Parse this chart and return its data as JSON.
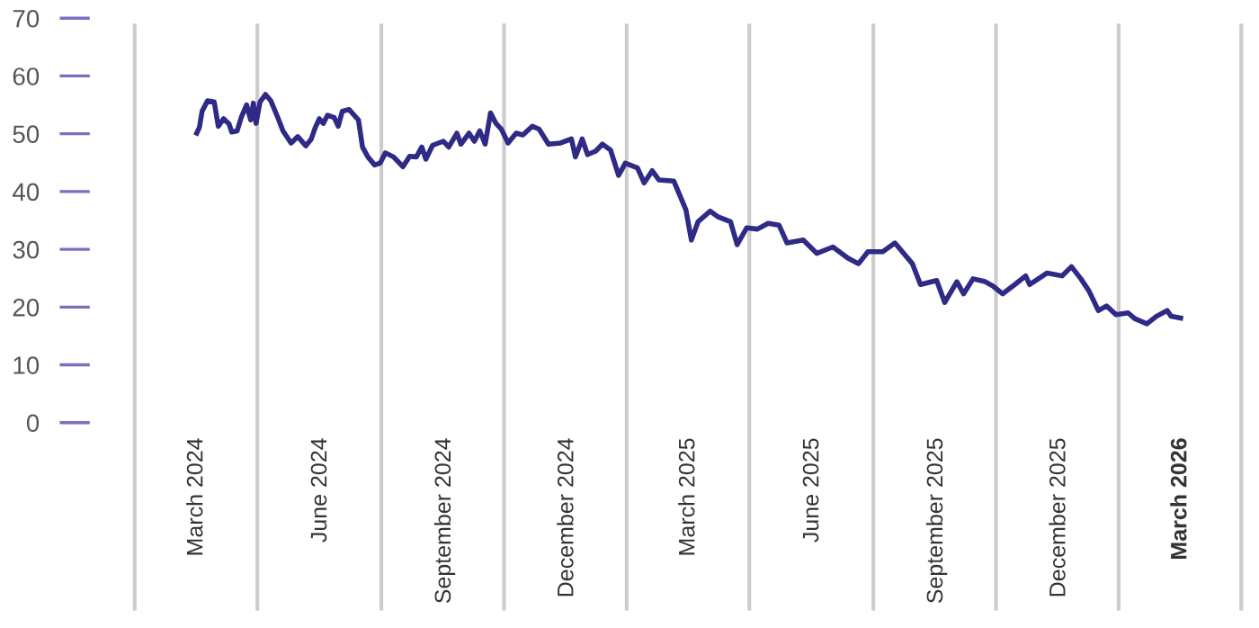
{
  "chart_data": {
    "type": "line",
    "x": [
      "2024-03-01",
      "2024-03-03",
      "2024-03-05",
      "2024-03-09",
      "2024-03-14",
      "2024-03-17",
      "2024-03-21",
      "2024-03-25",
      "2024-03-27",
      "2024-03-31",
      "2024-04-03",
      "2024-04-07",
      "2024-04-10",
      "2024-04-12",
      "2024-04-14",
      "2024-04-17",
      "2024-04-21",
      "2024-04-25",
      "2024-04-30",
      "2024-05-04",
      "2024-05-10",
      "2024-05-15",
      "2024-05-21",
      "2024-05-25",
      "2024-05-28",
      "2024-05-31",
      "2024-06-03",
      "2024-06-06",
      "2024-06-11",
      "2024-06-14",
      "2024-06-17",
      "2024-06-22",
      "2024-06-29",
      "2024-07-02",
      "2024-07-06",
      "2024-07-11",
      "2024-07-15",
      "2024-07-19",
      "2024-07-25",
      "2024-08-01",
      "2024-08-06",
      "2024-08-11",
      "2024-08-15",
      "2024-08-18",
      "2024-08-23",
      "2024-08-31",
      "2024-09-04",
      "2024-09-10",
      "2024-09-13",
      "2024-09-19",
      "2024-09-23",
      "2024-09-27",
      "2024-10-01",
      "2024-10-05",
      "2024-10-09",
      "2024-10-13",
      "2024-10-18",
      "2024-10-24",
      "2024-10-29",
      "2024-11-05",
      "2024-11-10",
      "2024-11-17",
      "2024-11-26",
      "2024-12-04",
      "2024-12-07",
      "2024-12-12",
      "2024-12-16",
      "2024-12-22",
      "2024-12-27",
      "2025-01-02",
      "2025-01-08",
      "2025-01-13",
      "2025-01-22",
      "2025-01-27",
      "2025-02-02",
      "2025-02-07",
      "2025-02-18",
      "2025-02-27",
      "2025-03-03",
      "2025-03-08",
      "2025-03-17",
      "2025-03-23",
      "2025-04-01",
      "2025-04-06",
      "2025-04-13",
      "2025-04-21",
      "2025-04-29",
      "2025-05-07",
      "2025-05-13",
      "2025-05-25",
      "2025-06-04",
      "2025-06-16",
      "2025-06-27",
      "2025-07-05",
      "2025-07-12",
      "2025-07-23",
      "2025-08-01",
      "2025-08-14",
      "2025-08-20",
      "2025-09-01",
      "2025-09-07",
      "2025-09-16",
      "2025-09-21",
      "2025-09-28",
      "2025-10-07",
      "2025-10-13",
      "2025-10-20",
      "2025-10-29",
      "2025-11-06",
      "2025-11-09",
      "2025-11-22",
      "2025-12-03",
      "2025-12-10",
      "2025-12-17",
      "2025-12-23",
      "2025-12-30",
      "2026-01-05",
      "2026-01-12",
      "2026-01-21",
      "2026-01-26",
      "2026-02-04",
      "2026-02-11",
      "2026-02-19",
      "2026-02-22",
      "2026-03-01"
    ],
    "series": [
      {
        "color": "#2e2a86",
        "values": [
          50.1,
          51.1,
          53.9,
          55.7,
          55.5,
          51.3,
          52.6,
          51.7,
          50.3,
          50.5,
          52.8,
          55,
          52.4,
          55.3,
          51.8,
          55.5,
          56.8,
          55.7,
          52.9,
          50.5,
          48.4,
          49.5,
          47.9,
          49.1,
          51.1,
          52.6,
          51.8,
          53.2,
          52.8,
          51.3,
          53.9,
          54.2,
          52.4,
          47.7,
          46,
          44.6,
          44.9,
          46.7,
          46,
          44.3,
          46.1,
          46,
          47.7,
          45.6,
          48,
          48.7,
          47.7,
          50.1,
          48.2,
          50.1,
          48.7,
          50.5,
          48.2,
          53.6,
          51.8,
          50.8,
          48.4,
          50.1,
          49.8,
          51.3,
          50.8,
          48.2,
          48.4,
          49.1,
          46,
          49.1,
          46.4,
          47,
          48.2,
          47.2,
          42.8,
          44.9,
          44.1,
          41.5,
          43.6,
          42,
          41.8,
          36.8,
          31.6,
          34.8,
          36.6,
          35.6,
          34.8,
          30.8,
          33.7,
          33.5,
          34.5,
          34.2,
          31.1,
          31.6,
          29.3,
          30.4,
          28.5,
          27.5,
          29.6,
          29.6,
          31.1,
          27.5,
          23.9,
          24.6,
          20.8,
          24.4,
          22.3,
          24.9,
          24.4,
          23.6,
          22.3,
          23.9,
          25.4,
          23.9,
          25.9,
          25.4,
          27,
          24.9,
          22.8,
          19.4,
          20.2,
          18.7,
          19,
          18,
          17.1,
          18.4,
          19.4,
          18.4,
          18.1
        ]
      }
    ],
    "xlim": [
      "2024-01-15",
      "2026-04-16"
    ],
    "xticks": [
      {
        "value": "2024-01-15",
        "label": null
      },
      {
        "value": "2024-03-01",
        "label": "March 2024"
      },
      {
        "value": "2024-04-15",
        "label": null
      },
      {
        "value": "2024-06-01",
        "label": "June 2024"
      },
      {
        "value": "2024-07-16",
        "label": null
      },
      {
        "value": "2024-09-01",
        "label": "September 2024"
      },
      {
        "value": "2024-10-15",
        "label": null
      },
      {
        "value": "2024-12-01",
        "label": "December 2024"
      },
      {
        "value": "2025-01-14",
        "label": null
      },
      {
        "value": "2025-03-01",
        "label": "March 2025"
      },
      {
        "value": "2025-04-15",
        "label": null
      },
      {
        "value": "2025-06-01",
        "label": "June 2025"
      },
      {
        "value": "2025-07-16",
        "label": null
      },
      {
        "value": "2025-09-01",
        "label": "September 2025"
      },
      {
        "value": "2025-10-15",
        "label": null
      },
      {
        "value": "2025-12-01",
        "label": "December 2025"
      },
      {
        "value": "2026-01-14",
        "label": null
      },
      {
        "value": "2026-03-01",
        "label": "March 2026"
      },
      {
        "value": "2026-04-15",
        "label": null
      }
    ],
    "ylim": [
      0,
      70
    ],
    "yticks": [
      0,
      10,
      20,
      30,
      40,
      50,
      60,
      70
    ],
    "grid": "x",
    "marker": "none",
    "line_style": "solid",
    "legend": false
  }
}
